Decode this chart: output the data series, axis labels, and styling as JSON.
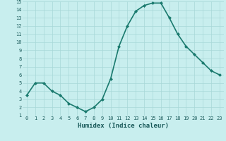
{
  "x": [
    0,
    1,
    2,
    3,
    4,
    5,
    6,
    7,
    8,
    9,
    10,
    11,
    12,
    13,
    14,
    15,
    16,
    17,
    18,
    19,
    20,
    21,
    22,
    23
  ],
  "y": [
    3.5,
    5.0,
    5.0,
    4.0,
    3.5,
    2.5,
    2.0,
    1.5,
    2.0,
    3.0,
    5.5,
    9.5,
    12.0,
    13.8,
    14.5,
    14.8,
    14.8,
    13.0,
    11.0,
    9.5,
    8.5,
    7.5,
    6.5,
    6.0
  ],
  "line_color": "#1a7a6e",
  "bg_color": "#c8eeee",
  "grid_color": "#a8d8d8",
  "xlabel": "Humidex (Indice chaleur)",
  "xlim": [
    -0.5,
    23.5
  ],
  "ylim": [
    1,
    15
  ],
  "yticks": [
    1,
    2,
    3,
    4,
    5,
    6,
    7,
    8,
    9,
    10,
    11,
    12,
    13,
    14,
    15
  ],
  "xtick_labels": [
    "0",
    "1",
    "2",
    "3",
    "4",
    "5",
    "6",
    "7",
    "8",
    "9",
    "10",
    "11",
    "12",
    "13",
    "14",
    "15",
    "16",
    "17",
    "18",
    "19",
    "20",
    "21",
    "22",
    "23"
  ],
  "font_color": "#1a5a5a",
  "tick_fontsize": 5.0,
  "xlabel_fontsize": 6.5,
  "marker": "D",
  "marker_size": 2.0,
  "line_width": 1.2
}
